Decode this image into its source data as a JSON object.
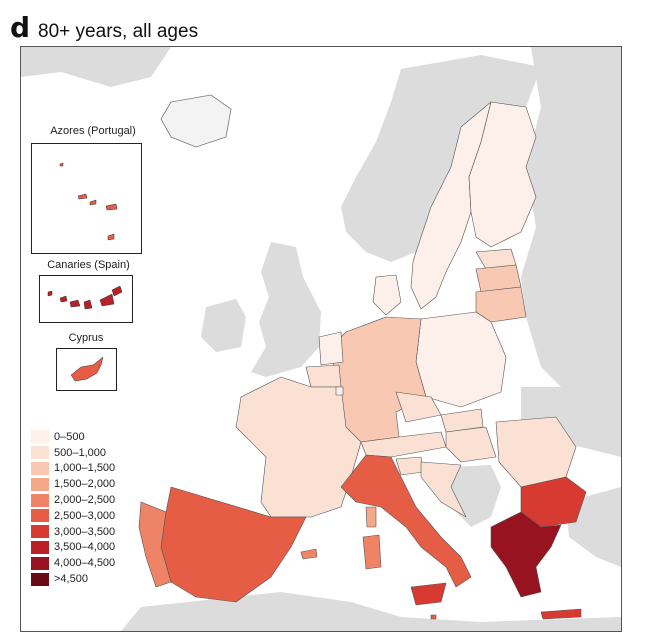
{
  "panel": {
    "letter": "d",
    "title": "80+ years, all ages"
  },
  "insets": {
    "azores": {
      "label": "Azores (Portugal)"
    },
    "canaries": {
      "label": "Canaries (Spain)"
    },
    "cyprus": {
      "label": "Cyprus"
    }
  },
  "legend": {
    "items": [
      {
        "label": "0–500",
        "color": "#fdf0ea"
      },
      {
        "label": "500–1,000",
        "color": "#fbe0d4"
      },
      {
        "label": "1,000–1,500",
        "color": "#f8c8b2"
      },
      {
        "label": "1,500–2,000",
        "color": "#f4a88a"
      },
      {
        "label": "2,000–2,500",
        "color": "#ee8465"
      },
      {
        "label": "2,500–3,000",
        "color": "#e65d45"
      },
      {
        "label": "3,000–3,500",
        "color": "#d73a30"
      },
      {
        "label": "3,500–4,000",
        "color": "#bb2027"
      },
      {
        "label": "4,000–4,500",
        "color": "#971320"
      },
      {
        "label": ">4,500",
        "color": "#6a0a14"
      }
    ]
  },
  "colors": {
    "non_eu_land": "#dcdcdc",
    "sea": "#ffffff",
    "border": "#555555"
  }
}
